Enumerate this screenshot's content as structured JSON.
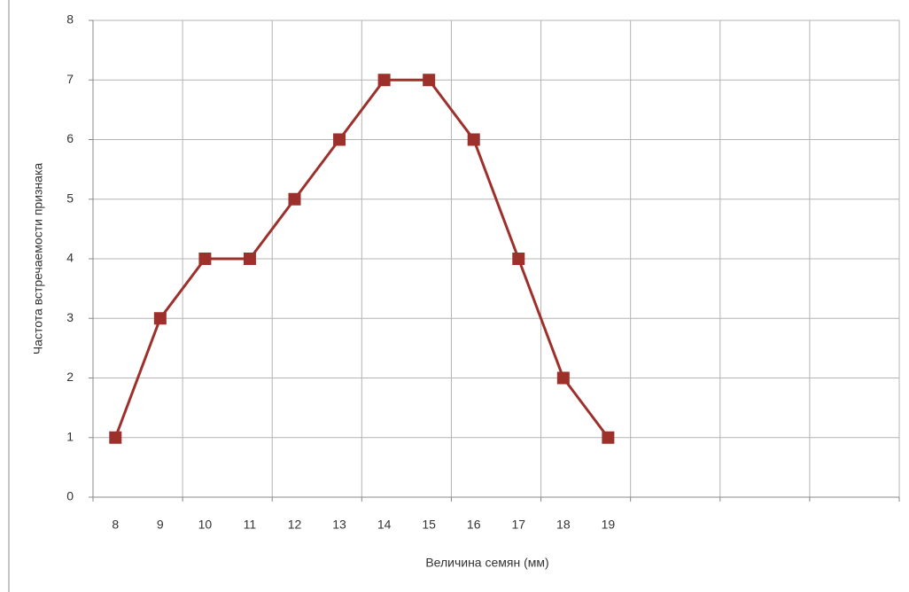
{
  "chart_data": {
    "type": "line",
    "x_label": "Величина семян (мм)",
    "y_label": "Частота встречаемости признака",
    "categories": [
      "8",
      "9",
      "10",
      "11",
      "12",
      "13",
      "14",
      "15",
      "16",
      "17",
      "18",
      "19",
      null,
      null,
      null,
      null,
      null,
      null
    ],
    "series": [
      {
        "name": "Частота",
        "color": "#9e302c",
        "values": [
          1,
          3,
          4,
          4,
          5,
          6,
          7,
          7,
          6,
          4,
          2,
          1,
          null,
          null,
          null,
          null,
          null,
          null
        ]
      }
    ],
    "ylim": [
      0,
      8
    ],
    "yticks": [
      0,
      1,
      2,
      3,
      4,
      5,
      6,
      7,
      8
    ],
    "grid": true,
    "legend": false
  }
}
